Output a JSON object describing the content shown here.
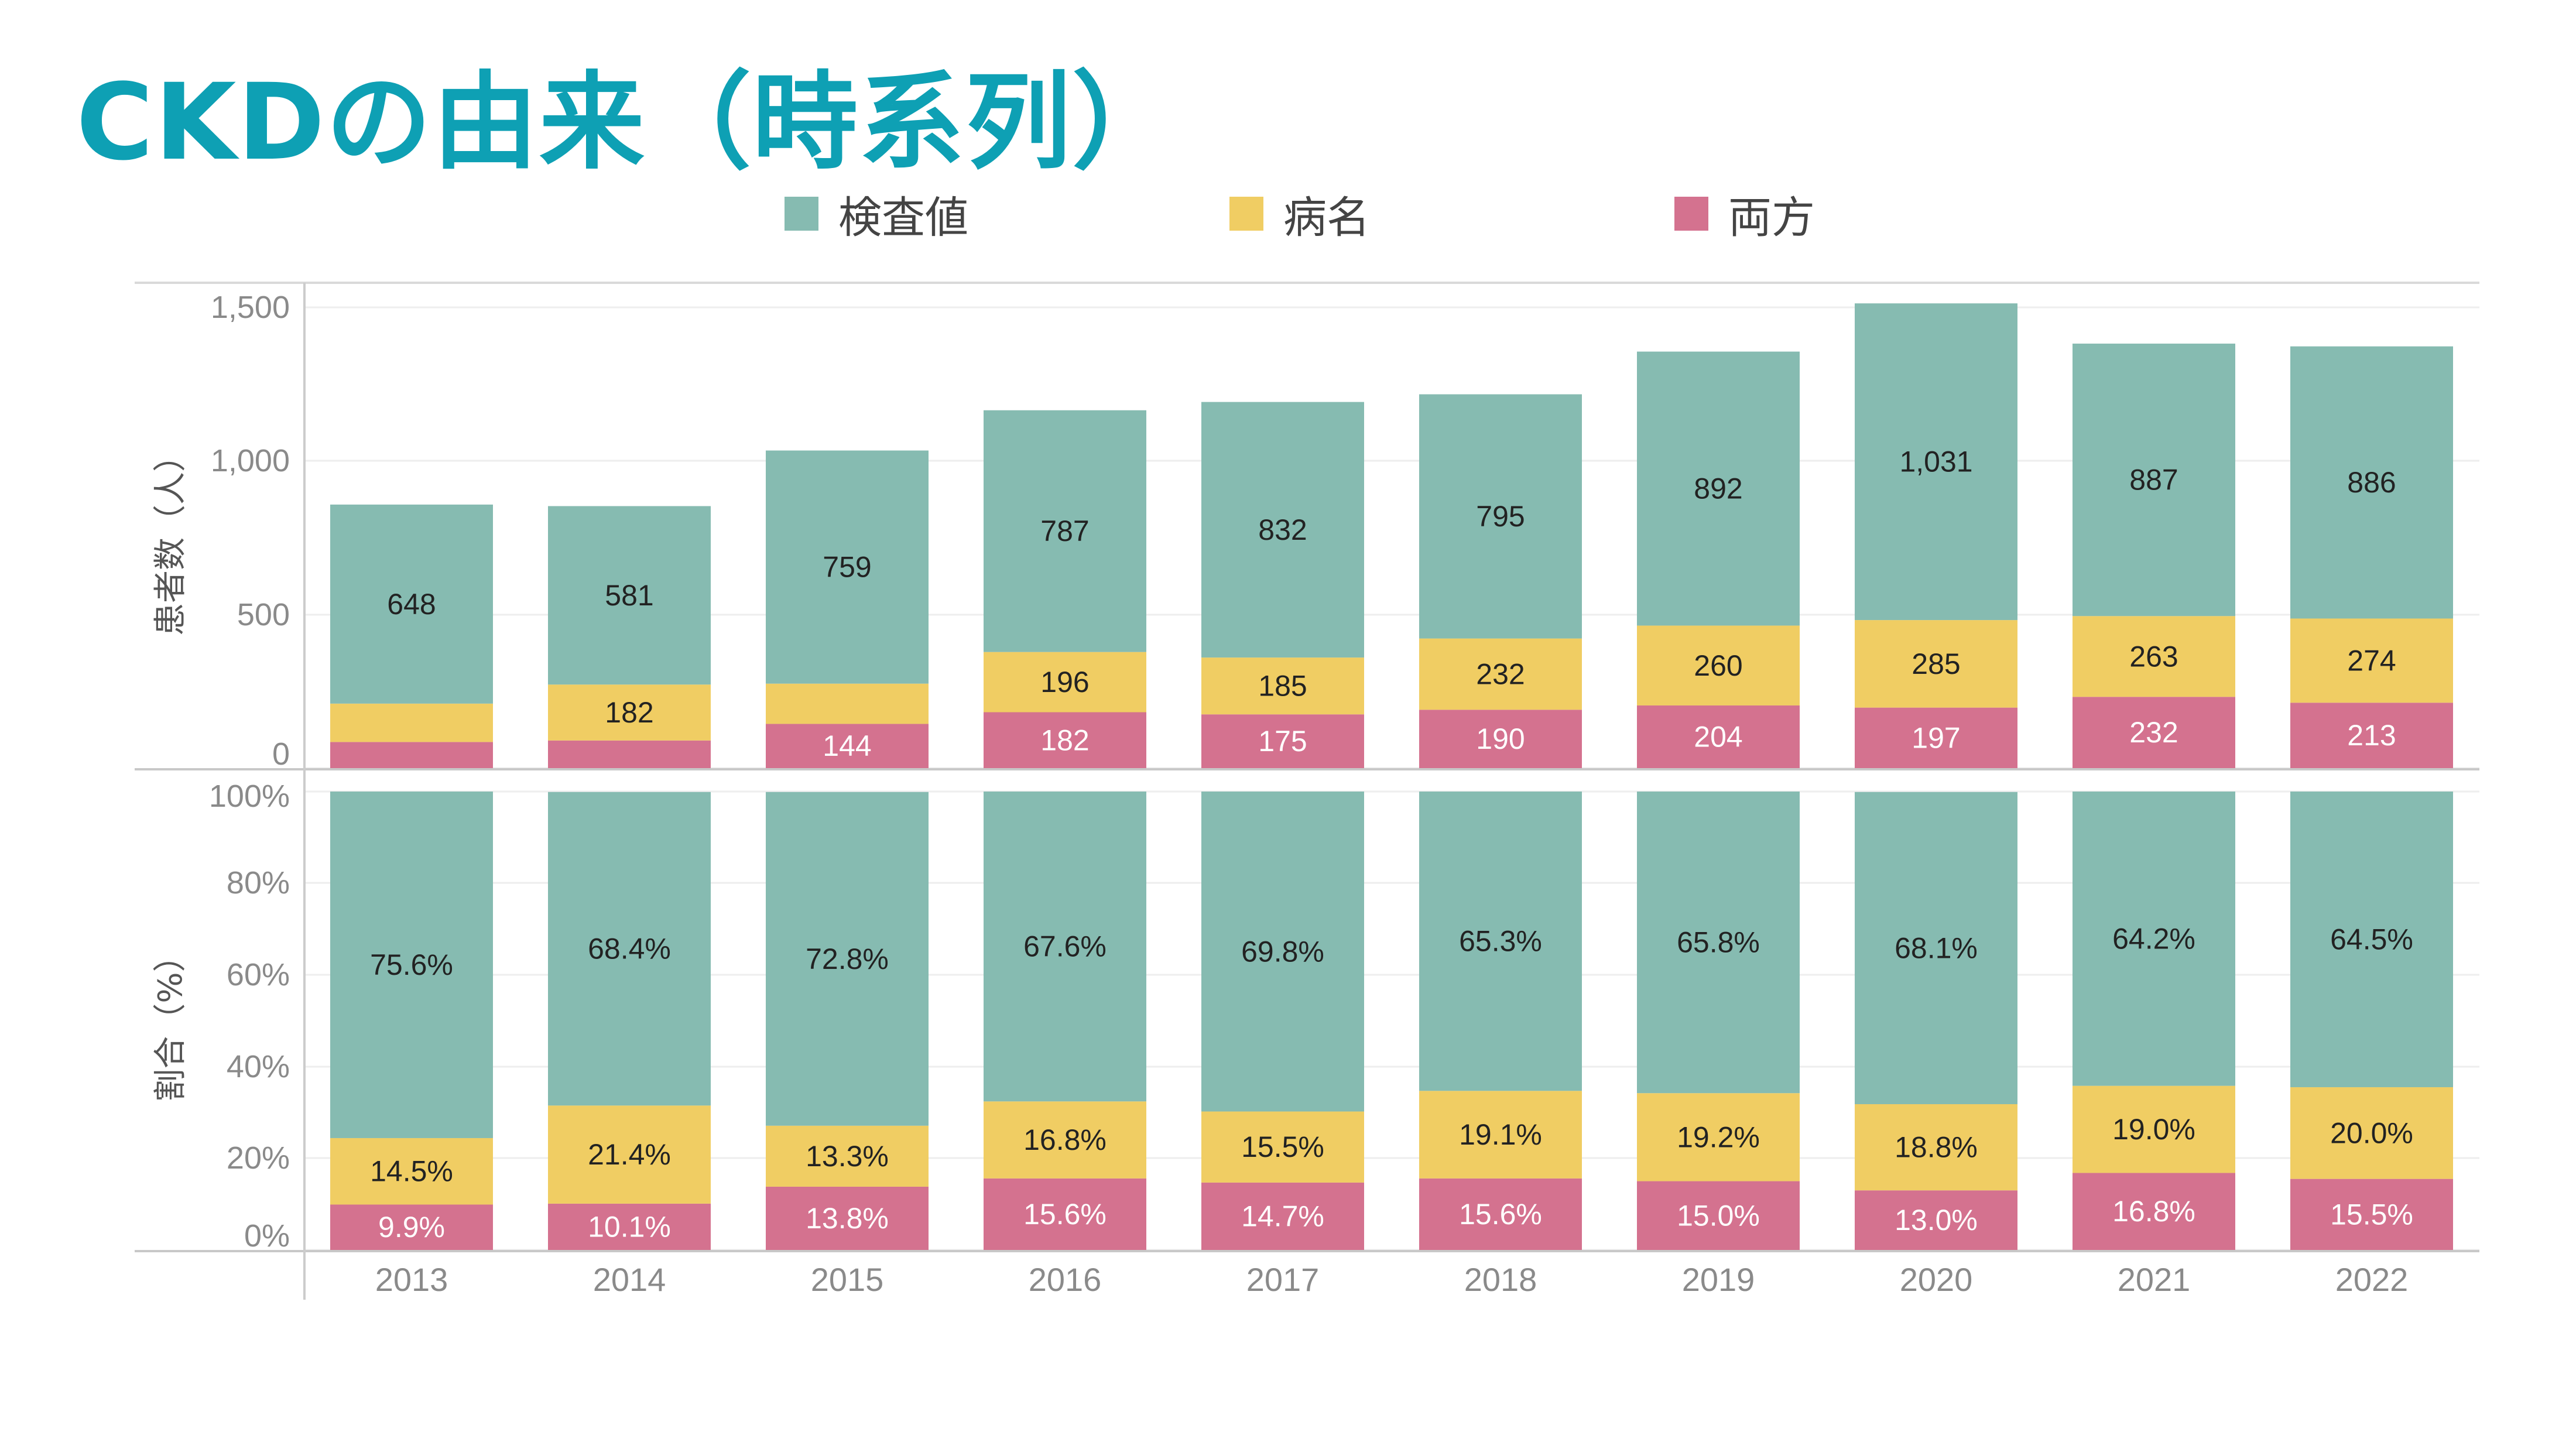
{
  "title": "CKDの由来（時系列）",
  "legend": [
    {
      "label": "検査値",
      "color": "#86bbb1"
    },
    {
      "label": "病名",
      "color": "#f0cd63"
    },
    {
      "label": "両方",
      "color": "#d4728f"
    }
  ],
  "chart_data": [
    {
      "type": "bar",
      "stacked": true,
      "ylabel": "患者数（人）",
      "ylim": [
        0,
        1500
      ],
      "yticks": [
        "1,500",
        "1,000",
        "500",
        "0"
      ],
      "grid": true,
      "legend_position": "top",
      "categories": [
        "2013",
        "2014",
        "2015",
        "2016",
        "2017",
        "2018",
        "2019",
        "2020",
        "2021",
        "2022"
      ],
      "series": [
        {
          "name": "両方",
          "color": "#d4728f",
          "values": [
            85,
            90,
            144,
            182,
            175,
            190,
            204,
            197,
            232,
            213
          ],
          "labels": [
            "",
            "",
            "144",
            "182",
            "175",
            "190",
            "204",
            "197",
            "232",
            "213"
          ]
        },
        {
          "name": "病名",
          "color": "#f0cd63",
          "values": [
            125,
            182,
            131,
            196,
            185,
            232,
            260,
            285,
            263,
            274
          ],
          "labels": [
            "",
            "182",
            "",
            "196",
            "185",
            "232",
            "260",
            "285",
            "263",
            "274"
          ]
        },
        {
          "name": "検査値",
          "color": "#86bbb1",
          "values": [
            648,
            581,
            759,
            787,
            832,
            795,
            892,
            1031,
            887,
            886
          ],
          "labels": [
            "648",
            "581",
            "759",
            "787",
            "832",
            "795",
            "892",
            "1,031",
            "887",
            "886"
          ]
        }
      ]
    },
    {
      "type": "bar",
      "stacked": true,
      "ylabel": "割合（%）",
      "ylim": [
        0,
        100
      ],
      "yticks": [
        "100%",
        "80%",
        "60%",
        "40%",
        "20%",
        "0%"
      ],
      "grid": true,
      "categories": [
        "2013",
        "2014",
        "2015",
        "2016",
        "2017",
        "2018",
        "2019",
        "2020",
        "2021",
        "2022"
      ],
      "series": [
        {
          "name": "両方",
          "color": "#d4728f",
          "values": [
            9.9,
            10.1,
            13.8,
            15.6,
            14.7,
            15.6,
            15.0,
            13.0,
            16.8,
            15.5
          ],
          "labels": [
            "9.9%",
            "10.1%",
            "13.8%",
            "15.6%",
            "14.7%",
            "15.6%",
            "15.0%",
            "13.0%",
            "16.8%",
            "15.5%"
          ]
        },
        {
          "name": "病名",
          "color": "#f0cd63",
          "values": [
            14.5,
            21.4,
            13.3,
            16.8,
            15.5,
            19.1,
            19.2,
            18.8,
            19.0,
            20.0
          ],
          "labels": [
            "14.5%",
            "21.4%",
            "13.3%",
            "16.8%",
            "15.5%",
            "19.1%",
            "19.2%",
            "18.8%",
            "19.0%",
            "20.0%"
          ]
        },
        {
          "name": "検査値",
          "color": "#86bbb1",
          "values": [
            75.6,
            68.4,
            72.8,
            67.6,
            69.8,
            65.3,
            65.8,
            68.1,
            64.2,
            64.5
          ],
          "labels": [
            "75.6%",
            "68.4%",
            "72.8%",
            "67.6%",
            "69.8%",
            "65.3%",
            "65.8%",
            "68.1%",
            "64.2%",
            "64.5%"
          ]
        }
      ]
    }
  ]
}
